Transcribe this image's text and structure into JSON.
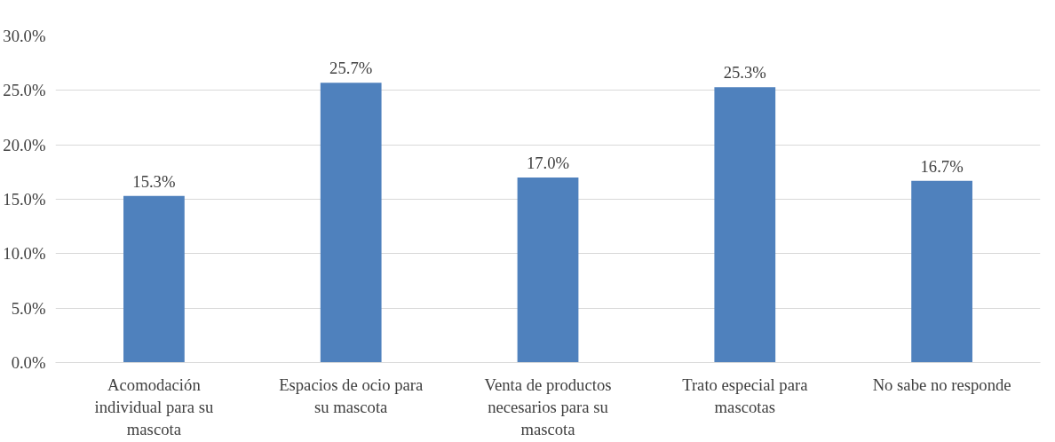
{
  "chart_data": {
    "type": "bar",
    "categories": [
      "Acomodación individual para su mascota",
      "Espacios de ocio para su mascota",
      "Venta de productos necesarios para su mascota",
      "Trato especial para mascotas",
      "No sabe no responde"
    ],
    "values": [
      15.3,
      25.7,
      17.0,
      25.3,
      16.7
    ],
    "value_labels": [
      "15.3%",
      "25.7%",
      "17.0%",
      "25.3%",
      "16.7%"
    ],
    "color": "#4f81bd",
    "ylim": [
      0,
      30
    ],
    "yticks": [
      {
        "value": 0,
        "label": "0.0%"
      },
      {
        "value": 5,
        "label": "5.0%"
      },
      {
        "value": 10,
        "label": "10.0%"
      },
      {
        "value": 15,
        "label": "15.0%"
      },
      {
        "value": 20,
        "label": "20.0%"
      },
      {
        "value": 25,
        "label": "25.0%"
      },
      {
        "value": 30,
        "label": "30.0%"
      }
    ],
    "grid": "y"
  }
}
